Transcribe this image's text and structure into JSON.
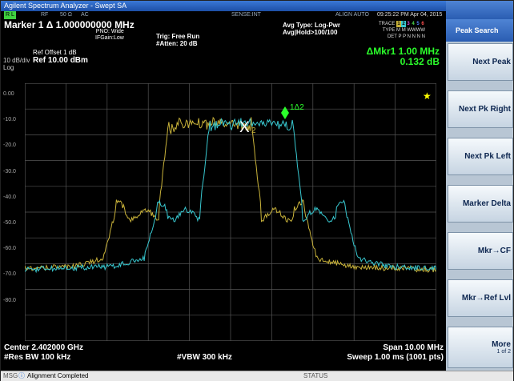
{
  "title": "Agilent Spectrum Analyzer - Swept SA",
  "status_row": {
    "rl": "R L",
    "rf": "RF",
    "ohm": "50 Ω",
    "ac": "AC",
    "sense": "SENSE:INT",
    "align": "ALIGN AUTO",
    "time": "09:25:22 PM Apr 04, 2015"
  },
  "header": {
    "marker_title": "Marker 1 Δ 1.000000000 MHz",
    "pno": "PNO: Wide",
    "ifgain": "IFGain:Low",
    "trig": "Trig: Free Run",
    "atten": "#Atten: 20 dB",
    "avg_type": "Avg Type: Log-Pwr",
    "avg_hold": "Avg|Hold>100/100",
    "trace_label": "TRACE",
    "type_label": "TYPE",
    "det_label": "DET",
    "trace_nums": [
      "1",
      "2",
      "3",
      "4",
      "5",
      "6"
    ],
    "type_vals": "M M WWWW",
    "det_vals": "P P N N N N"
  },
  "ref": {
    "offset": "Ref Offset 1 dB",
    "level": "Ref 10.00 dBm",
    "scale": "10 dB/div",
    "log": "Log"
  },
  "marker_readout": {
    "delta": "ΔMkr1 1.00 MHz",
    "value": "0.132 dB"
  },
  "y_labels": [
    "0.00",
    "-10.0",
    "-20.0",
    "-30.0",
    "-40.0",
    "-50.0",
    "-60.0",
    "-70.0",
    "-80.0"
  ],
  "markers": {
    "ref_marker": "X",
    "ref_sub": "2",
    "delta_marker": "1Δ2"
  },
  "bottom": {
    "center": "Center 2.402000 GHz",
    "span": "Span 10.00 MHz",
    "rbw": "#Res BW 100 kHz",
    "vbw": "#VBW 300 kHz",
    "sweep": "Sweep  1.00 ms (1001 pts)"
  },
  "msg": {
    "tag": "MSG",
    "text": "Alignment Completed",
    "status": "STATUS"
  },
  "softkeys": {
    "title": "Peak Search",
    "keys": [
      {
        "label": "Next Peak",
        "sub": ""
      },
      {
        "label": "Next Pk Right",
        "sub": ""
      },
      {
        "label": "Next Pk Left",
        "sub": ""
      },
      {
        "label": "Marker Delta",
        "sub": ""
      },
      {
        "label": "Mkr→CF",
        "sub": ""
      },
      {
        "label": "Mkr→Ref Lvl",
        "sub": ""
      },
      {
        "label": "More",
        "sub": "1 of 2"
      }
    ]
  },
  "colors": {
    "trace1": "#c8b23a",
    "trace2": "#38c8d0",
    "marker": "#2bff2b"
  }
}
